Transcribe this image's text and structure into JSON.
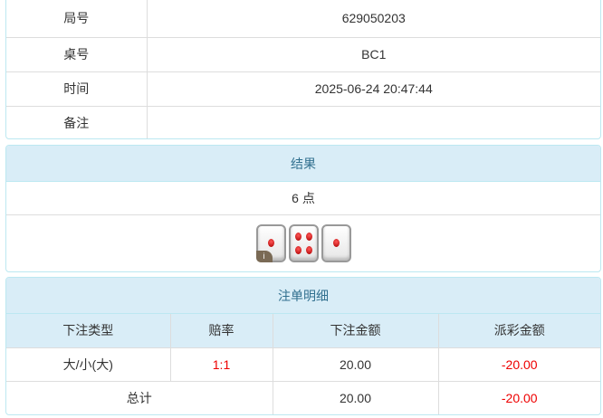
{
  "info": {
    "rows": [
      {
        "label": "局号",
        "value": "629050203"
      },
      {
        "label": "桌号",
        "value": "BC1"
      },
      {
        "label": "时间",
        "value": "2025-06-24 20:47:44"
      },
      {
        "label": "备注",
        "value": ""
      }
    ]
  },
  "result": {
    "title": "结果",
    "points": "6 点",
    "dice": [
      1,
      4,
      1
    ],
    "info_badge": "i"
  },
  "bets": {
    "title": "注单明细",
    "headers": [
      "下注类型",
      "赔率",
      "下注金额",
      "派彩金额"
    ],
    "rows": [
      {
        "type": "大/小(大)",
        "odds": "1:1",
        "amount": "20.00",
        "payout": "-20.00"
      }
    ],
    "total": {
      "label": "总计",
      "amount": "20.00",
      "payout": "-20.00"
    }
  }
}
